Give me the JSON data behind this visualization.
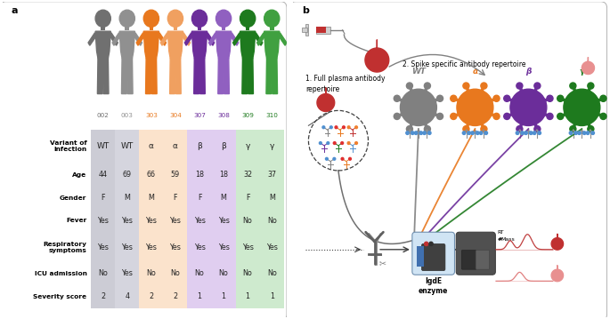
{
  "panel_a": {
    "patient_ids": [
      "002",
      "003",
      "303",
      "304",
      "307",
      "308",
      "309",
      "310"
    ],
    "patient_colors": [
      "#707070",
      "#909090",
      "#e8781e",
      "#f0a060",
      "#6b2d9a",
      "#9060c0",
      "#1e7a1e",
      "#40a040"
    ],
    "id_colors": [
      "#707070",
      "#909090",
      "#e8781e",
      "#e8781e",
      "#6b2d9a",
      "#6b2d9a",
      "#1e7a1e",
      "#1e7a1e"
    ],
    "row_labels": [
      "Variant of\ninfection",
      "Age",
      "Gender",
      "Fever",
      "Respiratory\nsymptoms",
      "ICU admission",
      "Severity score"
    ],
    "row_data": [
      [
        "WT",
        "WT",
        "α",
        "α",
        "β",
        "β",
        "γ",
        "γ"
      ],
      [
        "44",
        "69",
        "66",
        "59",
        "18",
        "18",
        "32",
        "37"
      ],
      [
        "F",
        "M",
        "M",
        "F",
        "F",
        "M",
        "F",
        "M"
      ],
      [
        "Yes",
        "Yes",
        "Yes",
        "Yes",
        "Yes",
        "Yes",
        "No",
        "No"
      ],
      [
        "Yes",
        "Yes",
        "Yes",
        "Yes",
        "Yes",
        "Yes",
        "Yes",
        "Yes"
      ],
      [
        "No",
        "Yes",
        "No",
        "No",
        "No",
        "No",
        "No",
        "No"
      ],
      [
        "2",
        "4",
        "2",
        "2",
        "1",
        "1",
        "1",
        "1"
      ]
    ],
    "col_bg_pairs": [
      [
        "#cdcdd6",
        "#d8d8e0"
      ],
      [
        "#fce8d5",
        "#fce8d5"
      ],
      [
        "#e5d5f0",
        "#e5d5f0"
      ],
      [
        "#d5ead5",
        "#d5ead5"
      ]
    ]
  },
  "panel_b": {
    "gray_color": "#808080",
    "orange_color": "#e8781e",
    "purple_color": "#6b2d9a",
    "green_color": "#1e7a1e",
    "dark_red": "#b03030",
    "pink_color": "#e08080",
    "label2": "2. Spike specific antibody repertoire",
    "label1_line1": "1. Full plasma antibody",
    "label1_line2": "repertoire"
  }
}
